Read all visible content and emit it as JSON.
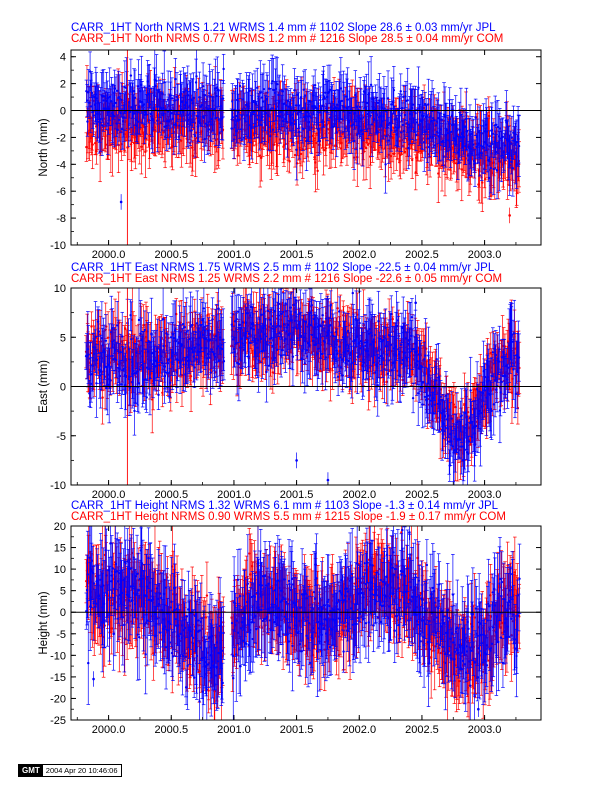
{
  "colors": {
    "jpl": "#0000ff",
    "com": "#ff0000",
    "axis": "#000000",
    "zero": "#000000"
  },
  "stamp": {
    "logo": "GMT",
    "timestamp": "2004 Apr 20 10:46:06"
  },
  "chart_data": [
    {
      "type": "scatter",
      "component": "North",
      "ylabel": "North (mm)",
      "xlim": [
        1999.7,
        2003.45
      ],
      "ylim": [
        -10,
        4.5
      ],
      "yticks": [
        -10,
        -8,
        -6,
        -4,
        -2,
        0,
        2,
        4
      ],
      "xticks": [
        2000.0,
        2000.5,
        2001.0,
        2001.5,
        2002.0,
        2002.5,
        2003.0
      ],
      "xtick_labels": [
        "2000.0",
        "2000.5",
        "2001.0",
        "2001.5",
        "2002.0",
        "2002.5",
        "2003.0"
      ],
      "zero_line": true,
      "legend_lines": [
        {
          "text": "CARR_1HT North NRMS 1.21 WRMS  1.4 mm # 1102 Slope   28.6 ±  0.03 mm/yr JPL",
          "series": "JPL"
        },
        {
          "text": "CARR_1HT North NRMS 0.77 WRMS  1.2 mm # 1216 Slope   28.5 ±  0.04 mm/yr COM",
          "series": "COM"
        }
      ],
      "series": [
        {
          "name": "JPL",
          "count": 1102,
          "wrms": 1.4,
          "nrms": 1.21,
          "slope": 28.6,
          "slope_sigma": 0.03,
          "x_start": 1999.82,
          "x_end": 2003.28,
          "gap": [
            2000.92,
            2000.98
          ],
          "sigma": 1.0,
          "signal": [
            {
              "x": 2000.3,
              "y": 0.3
            },
            {
              "x": 2002.1,
              "y": -0.2
            },
            {
              "x": 2003.2,
              "y": -2.5
            }
          ]
        },
        {
          "name": "COM",
          "count": 1216,
          "wrms": 1.2,
          "nrms": 0.77,
          "slope": 28.5,
          "slope_sigma": 0.04,
          "x_start": 1999.82,
          "x_end": 2003.28,
          "gap": [
            2000.92,
            2000.98
          ],
          "sigma": 1.0,
          "signal": [
            {
              "x": 2000.3,
              "y": -1.0
            },
            {
              "x": 2002.1,
              "y": -1.5
            },
            {
              "x": 2003.2,
              "y": -3.5
            }
          ]
        }
      ],
      "outliers": [
        {
          "series": "COM",
          "x": 2000.15,
          "y_low": -10,
          "y_high": 4.5
        },
        {
          "series": "JPL",
          "x": 2000.1,
          "y": -6.8
        },
        {
          "series": "COM",
          "x": 2003.2,
          "y": -7.8
        }
      ]
    },
    {
      "type": "scatter",
      "component": "East",
      "ylabel": "East (mm)",
      "xlim": [
        1999.7,
        2003.45
      ],
      "ylim": [
        -10,
        10
      ],
      "yticks": [
        -10,
        -5,
        0,
        5,
        10
      ],
      "xticks": [
        2000.0,
        2000.5,
        2001.0,
        2001.5,
        2002.0,
        2002.5,
        2003.0
      ],
      "xtick_labels": [
        "2000.0",
        "2000.5",
        "2001.0",
        "2001.5",
        "2002.0",
        "2002.5",
        "2003.0"
      ],
      "zero_line": true,
      "legend_lines": [
        {
          "text": "CARR_1HT East NRMS 1.75 WRMS  2.5 mm # 1102 Slope  -22.5 ±  0.04 mm/yr JPL",
          "series": "JPL"
        },
        {
          "text": "CARR_1HT East NRMS 1.25 WRMS  2.2 mm # 1216 Slope  -22.6 ±  0.05 mm/yr COM",
          "series": "COM"
        }
      ],
      "series": [
        {
          "name": "JPL",
          "count": 1102,
          "wrms": 2.5,
          "nrms": 1.75,
          "slope": -22.5,
          "slope_sigma": 0.04,
          "x_start": 1999.82,
          "x_end": 2003.28,
          "gap": [
            2000.92,
            2000.98
          ],
          "sigma": 1.6,
          "signal": [
            {
              "x": 2000.2,
              "y": 2.5
            },
            {
              "x": 2001.3,
              "y": 5.5
            },
            {
              "x": 2002.4,
              "y": 3.5
            },
            {
              "x": 2002.8,
              "y": -5.0
            },
            {
              "x": 2003.2,
              "y": 2.5
            }
          ]
        },
        {
          "name": "COM",
          "count": 1216,
          "wrms": 2.2,
          "nrms": 1.25,
          "slope": -22.6,
          "slope_sigma": 0.05,
          "x_start": 1999.82,
          "x_end": 2003.28,
          "gap": [
            2000.92,
            2000.98
          ],
          "sigma": 1.5,
          "signal": [
            {
              "x": 2000.2,
              "y": 3.0
            },
            {
              "x": 2001.3,
              "y": 5.5
            },
            {
              "x": 2002.4,
              "y": 3.5
            },
            {
              "x": 2002.8,
              "y": -4.5
            },
            {
              "x": 2003.2,
              "y": 3.0
            }
          ]
        }
      ],
      "outliers": [
        {
          "series": "COM",
          "x": 2000.15,
          "y_low": -10,
          "y_high": 10
        },
        {
          "series": "JPL",
          "x": 2001.75,
          "y": -9.5
        },
        {
          "series": "JPL",
          "x": 2002.45,
          "y": 8.5
        },
        {
          "series": "JPL",
          "x": 2001.5,
          "y": -7.5
        }
      ]
    },
    {
      "type": "scatter",
      "component": "Height",
      "ylabel": "Height (mm)",
      "xlim": [
        1999.7,
        2003.45
      ],
      "ylim": [
        -25,
        20
      ],
      "yticks": [
        -25,
        -20,
        -15,
        -10,
        -5,
        0,
        5,
        10,
        15,
        20
      ],
      "xticks": [
        2000.0,
        2000.5,
        2001.0,
        2001.5,
        2002.0,
        2002.5,
        2003.0
      ],
      "xtick_labels": [
        "2000.0",
        "2000.5",
        "2001.0",
        "2001.5",
        "2002.0",
        "2002.5",
        "2003.0"
      ],
      "zero_line": true,
      "legend_lines": [
        {
          "text": "CARR_1HT Height NRMS 1.32 WRMS  6.1 mm # 1103 Slope   -1.3 ±  0.14 mm/yr JPL",
          "series": "JPL"
        },
        {
          "text": "CARR_1HT Height NRMS 0.90 WRMS  5.5 mm # 1215 Slope   -1.9 ±  0.17 mm/yr COM",
          "series": "COM"
        }
      ],
      "series": [
        {
          "name": "JPL",
          "count": 1103,
          "wrms": 6.1,
          "nrms": 1.32,
          "slope": -1.3,
          "slope_sigma": 0.14,
          "x_start": 1999.82,
          "x_end": 2003.28,
          "gap": [
            2000.92,
            2000.98
          ],
          "sigma": 4.8,
          "signal": [
            {
              "x": 2000.2,
              "y": 5.0
            },
            {
              "x": 2000.85,
              "y": -9.0
            },
            {
              "x": 2001.2,
              "y": 3.0
            },
            {
              "x": 2001.7,
              "y": -2.0
            },
            {
              "x": 2002.2,
              "y": 6.0
            },
            {
              "x": 2002.9,
              "y": -10.0
            },
            {
              "x": 2003.2,
              "y": 1.0
            }
          ]
        },
        {
          "name": "COM",
          "count": 1215,
          "wrms": 5.5,
          "nrms": 0.9,
          "slope": -1.9,
          "slope_sigma": 0.17,
          "x_start": 1999.82,
          "x_end": 2003.28,
          "gap": [
            2000.92,
            2000.98
          ],
          "sigma": 4.5,
          "signal": [
            {
              "x": 2000.2,
              "y": 4.5
            },
            {
              "x": 2000.85,
              "y": -8.5
            },
            {
              "x": 2001.2,
              "y": 3.0
            },
            {
              "x": 2001.7,
              "y": -2.0
            },
            {
              "x": 2002.2,
              "y": 6.0
            },
            {
              "x": 2002.9,
              "y": -9.5
            },
            {
              "x": 2003.2,
              "y": 1.0
            }
          ]
        }
      ],
      "outliers": [
        {
          "series": "JPL",
          "x": 1999.88,
          "y": -15.5
        },
        {
          "series": "JPL",
          "x": 2002.95,
          "y": -22.5
        },
        {
          "series": "JPL",
          "x": 2002.4,
          "y": 18.5
        }
      ]
    }
  ]
}
